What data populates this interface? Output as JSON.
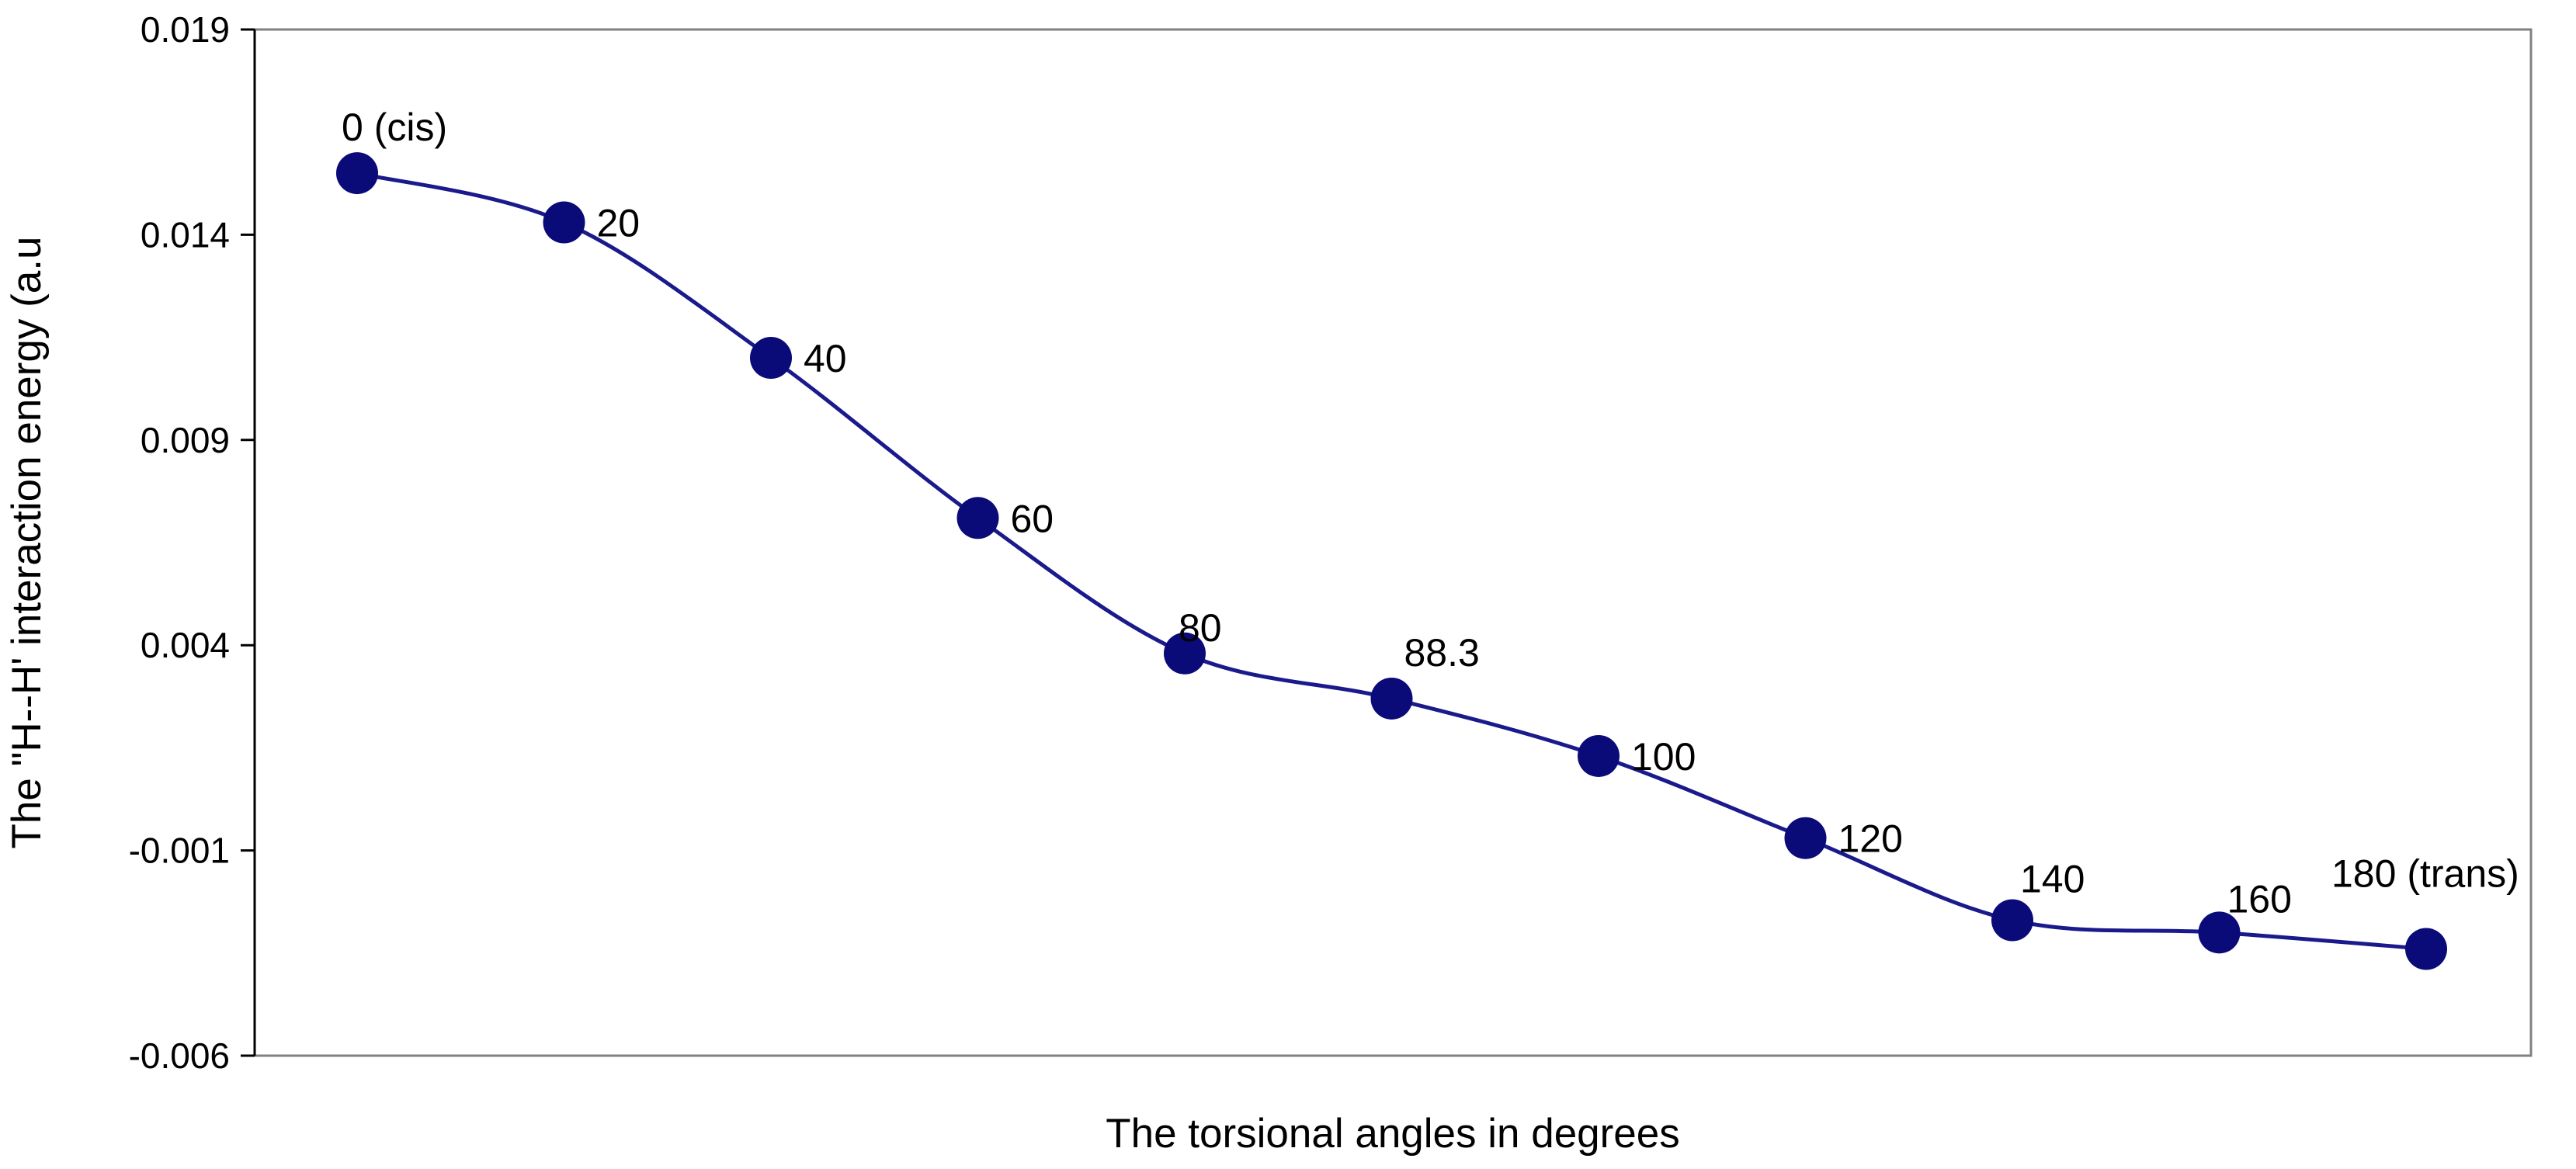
{
  "chart_data": {
    "type": "line",
    "title": "",
    "xlabel": "The torsional angles in degrees",
    "ylabel": "The \"H--H' interaction energy (a.u",
    "ylim": [
      -0.006,
      0.019
    ],
    "y_ticks": [
      -0.006,
      -0.001,
      0.004,
      0.009,
      0.014,
      0.019
    ],
    "y_tick_labels": [
      "-0.006",
      "-0.001",
      "0.004",
      "0.009",
      "0.014",
      "0.019"
    ],
    "grid": false,
    "legend": "none",
    "series": [
      {
        "point_labels": [
          "0 (cis)",
          "20",
          "40",
          "60",
          "80",
          "88.3",
          "100",
          "120",
          "140",
          "160",
          "180 (trans)"
        ],
        "values": [
          0.0155,
          0.0143,
          0.011,
          0.0071,
          0.0038,
          0.0027,
          0.0013,
          -0.0007,
          -0.0027,
          -0.003,
          -0.0034
        ]
      }
    ],
    "colors": {
      "line": "#1a1a8c",
      "marker": "#0a0a78",
      "frame": "#808080",
      "axis": "#000000"
    }
  }
}
